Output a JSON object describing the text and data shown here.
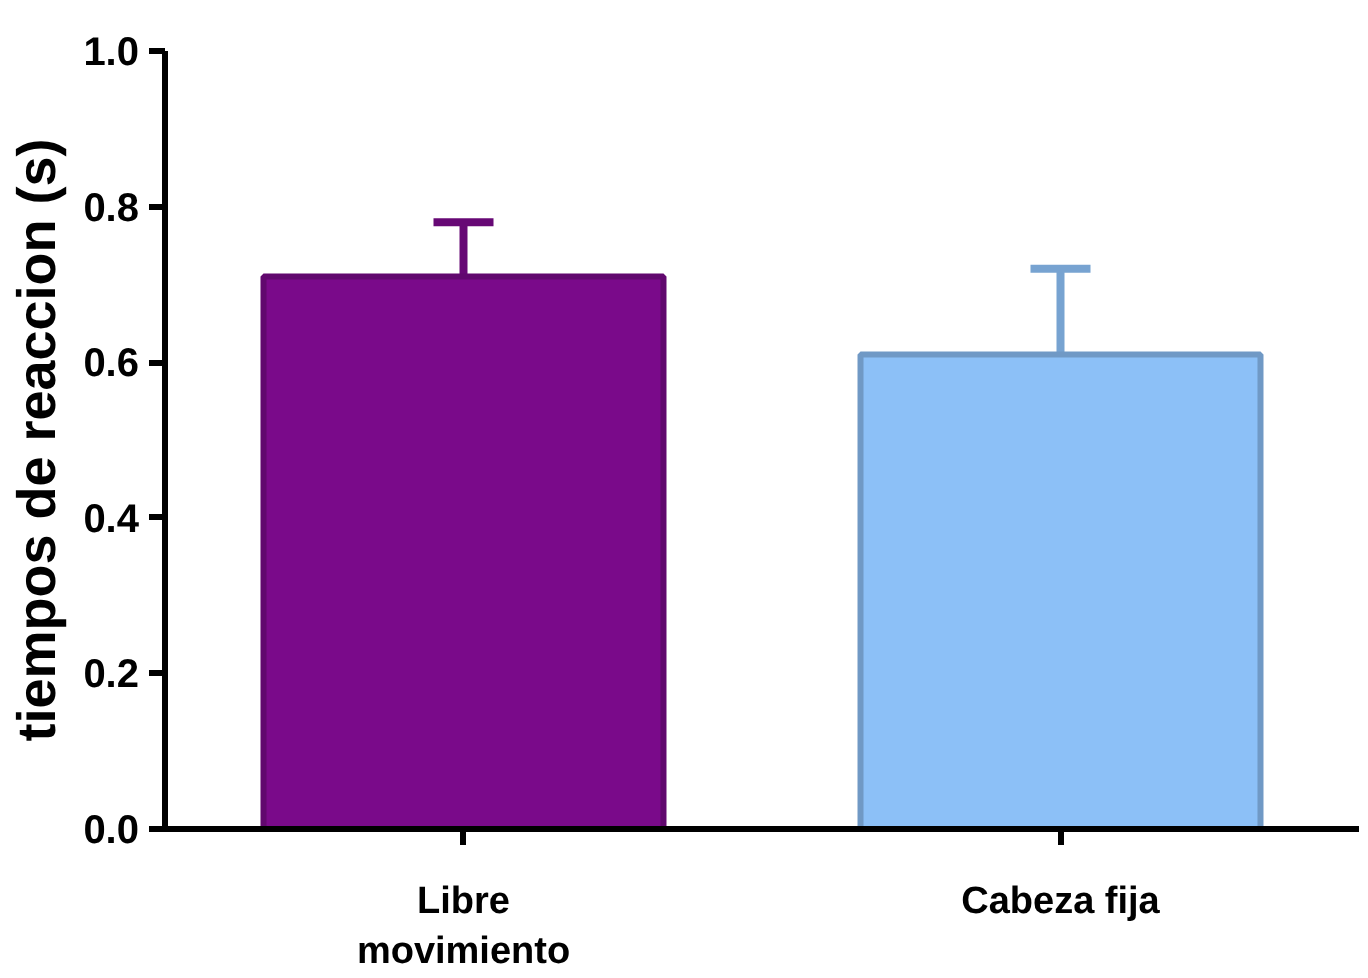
{
  "chart_data": {
    "type": "bar",
    "ylabel": "tiempos de reaccion (s)",
    "categories": [
      "Libre movimiento",
      "Cabeza fija"
    ],
    "values": [
      0.71,
      0.61
    ],
    "colors": [
      "#7a0a8a",
      "#8cc0f7"
    ],
    "errors": [
      [
        0.71,
        0.78
      ],
      [
        0.61,
        0.72
      ]
    ],
    "ylim": [
      0,
      1.0
    ],
    "yticks": [
      {
        "value": 0,
        "label": "0.0"
      },
      {
        "value": 0.2,
        "label": "0.2"
      },
      {
        "value": 0.4,
        "label": "0.4"
      },
      {
        "value": 0.6,
        "label": "0.6"
      },
      {
        "value": 0.8,
        "label": "0.8"
      },
      {
        "value": 1.0,
        "label": "1.0"
      }
    ],
    "grid": false
  }
}
